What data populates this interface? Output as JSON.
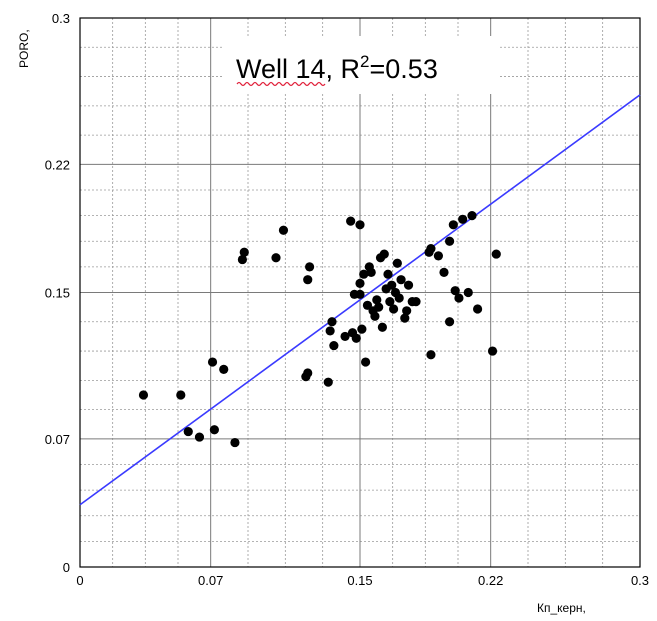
{
  "chart_data": {
    "type": "scatter",
    "title": "Well 14, R²=0.53",
    "title_parts": {
      "prefix": "Well 14, R",
      "sup": "2",
      "suffix": "=0.53"
    },
    "xlabel": "Кп_керн,",
    "ylabel": "PORO,",
    "xlim": [
      0,
      0.3
    ],
    "ylim": [
      0,
      0.3
    ],
    "x_ticks": [
      0,
      0.07,
      0.15,
      0.22,
      0.3
    ],
    "y_ticks": [
      0,
      0.07,
      0.15,
      0.22,
      0.3
    ],
    "x_tick_labels": [
      "0",
      "0.07",
      "0.15",
      "0.22",
      "0.3"
    ],
    "y_tick_labels": [
      "0",
      "0.07",
      "0.15",
      "0.22",
      "0.3"
    ],
    "grid": true,
    "point_color": "#000000",
    "line_color": "#3a3aff",
    "trendline": {
      "x": [
        0,
        0.3
      ],
      "y": [
        0.034,
        0.258
      ]
    },
    "points": [
      {
        "x": 0.034,
        "y": 0.094
      },
      {
        "x": 0.054,
        "y": 0.094
      },
      {
        "x": 0.058,
        "y": 0.074
      },
      {
        "x": 0.064,
        "y": 0.071
      },
      {
        "x": 0.071,
        "y": 0.112
      },
      {
        "x": 0.072,
        "y": 0.075
      },
      {
        "x": 0.077,
        "y": 0.108
      },
      {
        "x": 0.083,
        "y": 0.068
      },
      {
        "x": 0.087,
        "y": 0.168
      },
      {
        "x": 0.088,
        "y": 0.172
      },
      {
        "x": 0.105,
        "y": 0.169
      },
      {
        "x": 0.109,
        "y": 0.184
      },
      {
        "x": 0.121,
        "y": 0.104
      },
      {
        "x": 0.122,
        "y": 0.106
      },
      {
        "x": 0.122,
        "y": 0.157
      },
      {
        "x": 0.123,
        "y": 0.164
      },
      {
        "x": 0.133,
        "y": 0.101
      },
      {
        "x": 0.134,
        "y": 0.129
      },
      {
        "x": 0.135,
        "y": 0.134
      },
      {
        "x": 0.136,
        "y": 0.121
      },
      {
        "x": 0.142,
        "y": 0.126
      },
      {
        "x": 0.145,
        "y": 0.189
      },
      {
        "x": 0.146,
        "y": 0.128
      },
      {
        "x": 0.147,
        "y": 0.149
      },
      {
        "x": 0.148,
        "y": 0.125
      },
      {
        "x": 0.15,
        "y": 0.187
      },
      {
        "x": 0.15,
        "y": 0.155
      },
      {
        "x": 0.15,
        "y": 0.149
      },
      {
        "x": 0.151,
        "y": 0.13
      },
      {
        "x": 0.152,
        "y": 0.16
      },
      {
        "x": 0.153,
        "y": 0.112
      },
      {
        "x": 0.154,
        "y": 0.143
      },
      {
        "x": 0.155,
        "y": 0.164
      },
      {
        "x": 0.156,
        "y": 0.161
      },
      {
        "x": 0.157,
        "y": 0.14
      },
      {
        "x": 0.158,
        "y": 0.137
      },
      {
        "x": 0.159,
        "y": 0.146
      },
      {
        "x": 0.16,
        "y": 0.142
      },
      {
        "x": 0.161,
        "y": 0.169
      },
      {
        "x": 0.162,
        "y": 0.131
      },
      {
        "x": 0.163,
        "y": 0.171
      },
      {
        "x": 0.164,
        "y": 0.152
      },
      {
        "x": 0.165,
        "y": 0.16
      },
      {
        "x": 0.166,
        "y": 0.145
      },
      {
        "x": 0.167,
        "y": 0.154
      },
      {
        "x": 0.168,
        "y": 0.141
      },
      {
        "x": 0.169,
        "y": 0.15
      },
      {
        "x": 0.17,
        "y": 0.166
      },
      {
        "x": 0.171,
        "y": 0.147
      },
      {
        "x": 0.172,
        "y": 0.157
      },
      {
        "x": 0.174,
        "y": 0.136
      },
      {
        "x": 0.175,
        "y": 0.14
      },
      {
        "x": 0.176,
        "y": 0.154
      },
      {
        "x": 0.178,
        "y": 0.145
      },
      {
        "x": 0.18,
        "y": 0.145
      },
      {
        "x": 0.187,
        "y": 0.172
      },
      {
        "x": 0.188,
        "y": 0.174
      },
      {
        "x": 0.188,
        "y": 0.116
      },
      {
        "x": 0.192,
        "y": 0.17
      },
      {
        "x": 0.195,
        "y": 0.161
      },
      {
        "x": 0.198,
        "y": 0.178
      },
      {
        "x": 0.198,
        "y": 0.134
      },
      {
        "x": 0.2,
        "y": 0.187
      },
      {
        "x": 0.201,
        "y": 0.151
      },
      {
        "x": 0.203,
        "y": 0.147
      },
      {
        "x": 0.205,
        "y": 0.19
      },
      {
        "x": 0.208,
        "y": 0.15
      },
      {
        "x": 0.21,
        "y": 0.192
      },
      {
        "x": 0.213,
        "y": 0.141
      },
      {
        "x": 0.221,
        "y": 0.118
      },
      {
        "x": 0.223,
        "y": 0.171
      }
    ]
  }
}
